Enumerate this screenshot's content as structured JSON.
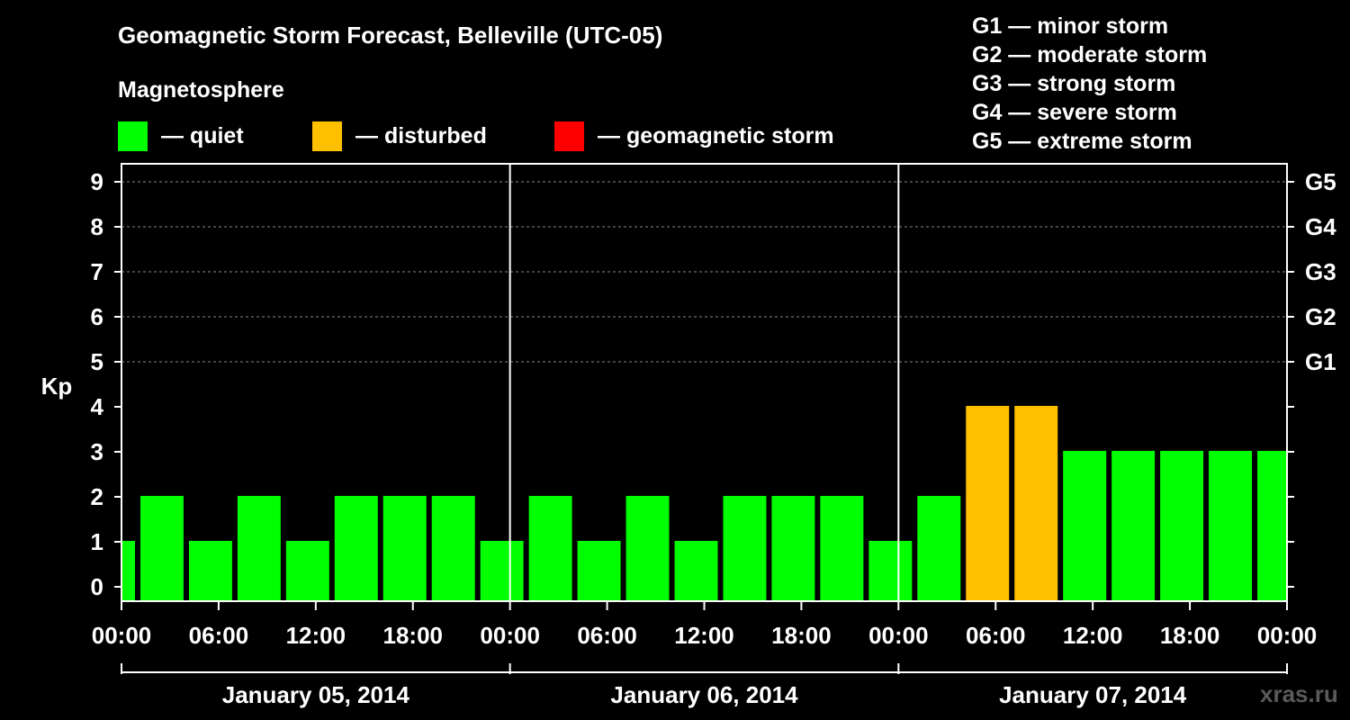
{
  "title": "Geomagnetic Storm Forecast, Belleville (UTC-05)",
  "subtitle": "Magnetosphere",
  "legend": [
    {
      "label": "— quiet",
      "color": "#00ff00"
    },
    {
      "label": "— disturbed",
      "color": "#ffc000"
    },
    {
      "label": "— geomagnetic storm",
      "color": "#ff0000"
    }
  ],
  "storm_scale": [
    "G1 — minor storm",
    "G2 — moderate storm",
    "G3 — strong storm",
    "G4 — severe storm",
    "G5 — extreme storm"
  ],
  "watermark": "xras.ru",
  "colors": {
    "quiet": "#00ff00",
    "disturbed": "#ffc000",
    "storm": "#ff0000",
    "background": "#000000",
    "axis": "#ffffff",
    "grid": "#888888"
  },
  "chart_data": {
    "type": "bar",
    "title": "Geomagnetic Storm Forecast, Belleville (UTC-05)",
    "ylabel": "Kp",
    "ylim": [
      0,
      9
    ],
    "yticks": [
      0,
      1,
      2,
      3,
      4,
      5,
      6,
      7,
      8,
      9
    ],
    "right_axis_labels": [
      {
        "kp": 5,
        "label": "G1"
      },
      {
        "kp": 6,
        "label": "G2"
      },
      {
        "kp": 7,
        "label": "G3"
      },
      {
        "kp": 8,
        "label": "G4"
      },
      {
        "kp": 9,
        "label": "G5"
      }
    ],
    "x_tick_labels": [
      "00:00",
      "06:00",
      "12:00",
      "18:00",
      "00:00",
      "06:00",
      "12:00",
      "18:00",
      "00:00",
      "06:00",
      "12:00",
      "18:00",
      "00:00"
    ],
    "x_hours_total": 72,
    "days": [
      "January 05, 2014",
      "January 06, 2014",
      "January 07, 2014"
    ],
    "bar_interval_hours": 3,
    "bars": [
      {
        "start_hour": 0,
        "end_hour": 1,
        "kp": 1,
        "status": "quiet"
      },
      {
        "start_hour": 1,
        "end_hour": 4,
        "kp": 2,
        "status": "quiet"
      },
      {
        "start_hour": 4,
        "end_hour": 7,
        "kp": 1,
        "status": "quiet"
      },
      {
        "start_hour": 7,
        "end_hour": 10,
        "kp": 2,
        "status": "quiet"
      },
      {
        "start_hour": 10,
        "end_hour": 13,
        "kp": 1,
        "status": "quiet"
      },
      {
        "start_hour": 13,
        "end_hour": 16,
        "kp": 2,
        "status": "quiet"
      },
      {
        "start_hour": 16,
        "end_hour": 19,
        "kp": 2,
        "status": "quiet"
      },
      {
        "start_hour": 19,
        "end_hour": 22,
        "kp": 2,
        "status": "quiet"
      },
      {
        "start_hour": 22,
        "end_hour": 25,
        "kp": 1,
        "status": "quiet"
      },
      {
        "start_hour": 25,
        "end_hour": 28,
        "kp": 2,
        "status": "quiet"
      },
      {
        "start_hour": 28,
        "end_hour": 31,
        "kp": 1,
        "status": "quiet"
      },
      {
        "start_hour": 31,
        "end_hour": 34,
        "kp": 2,
        "status": "quiet"
      },
      {
        "start_hour": 34,
        "end_hour": 37,
        "kp": 1,
        "status": "quiet"
      },
      {
        "start_hour": 37,
        "end_hour": 40,
        "kp": 2,
        "status": "quiet"
      },
      {
        "start_hour": 40,
        "end_hour": 43,
        "kp": 2,
        "status": "quiet"
      },
      {
        "start_hour": 43,
        "end_hour": 46,
        "kp": 2,
        "status": "quiet"
      },
      {
        "start_hour": 46,
        "end_hour": 49,
        "kp": 1,
        "status": "quiet"
      },
      {
        "start_hour": 49,
        "end_hour": 52,
        "kp": 2,
        "status": "quiet"
      },
      {
        "start_hour": 52,
        "end_hour": 55,
        "kp": 4,
        "status": "disturbed"
      },
      {
        "start_hour": 55,
        "end_hour": 58,
        "kp": 4,
        "status": "disturbed"
      },
      {
        "start_hour": 58,
        "end_hour": 61,
        "kp": 3,
        "status": "quiet"
      },
      {
        "start_hour": 61,
        "end_hour": 64,
        "kp": 3,
        "status": "quiet"
      },
      {
        "start_hour": 64,
        "end_hour": 67,
        "kp": 3,
        "status": "quiet"
      },
      {
        "start_hour": 67,
        "end_hour": 70,
        "kp": 3,
        "status": "quiet"
      },
      {
        "start_hour": 70,
        "end_hour": 72,
        "kp": 3,
        "status": "quiet"
      }
    ]
  }
}
